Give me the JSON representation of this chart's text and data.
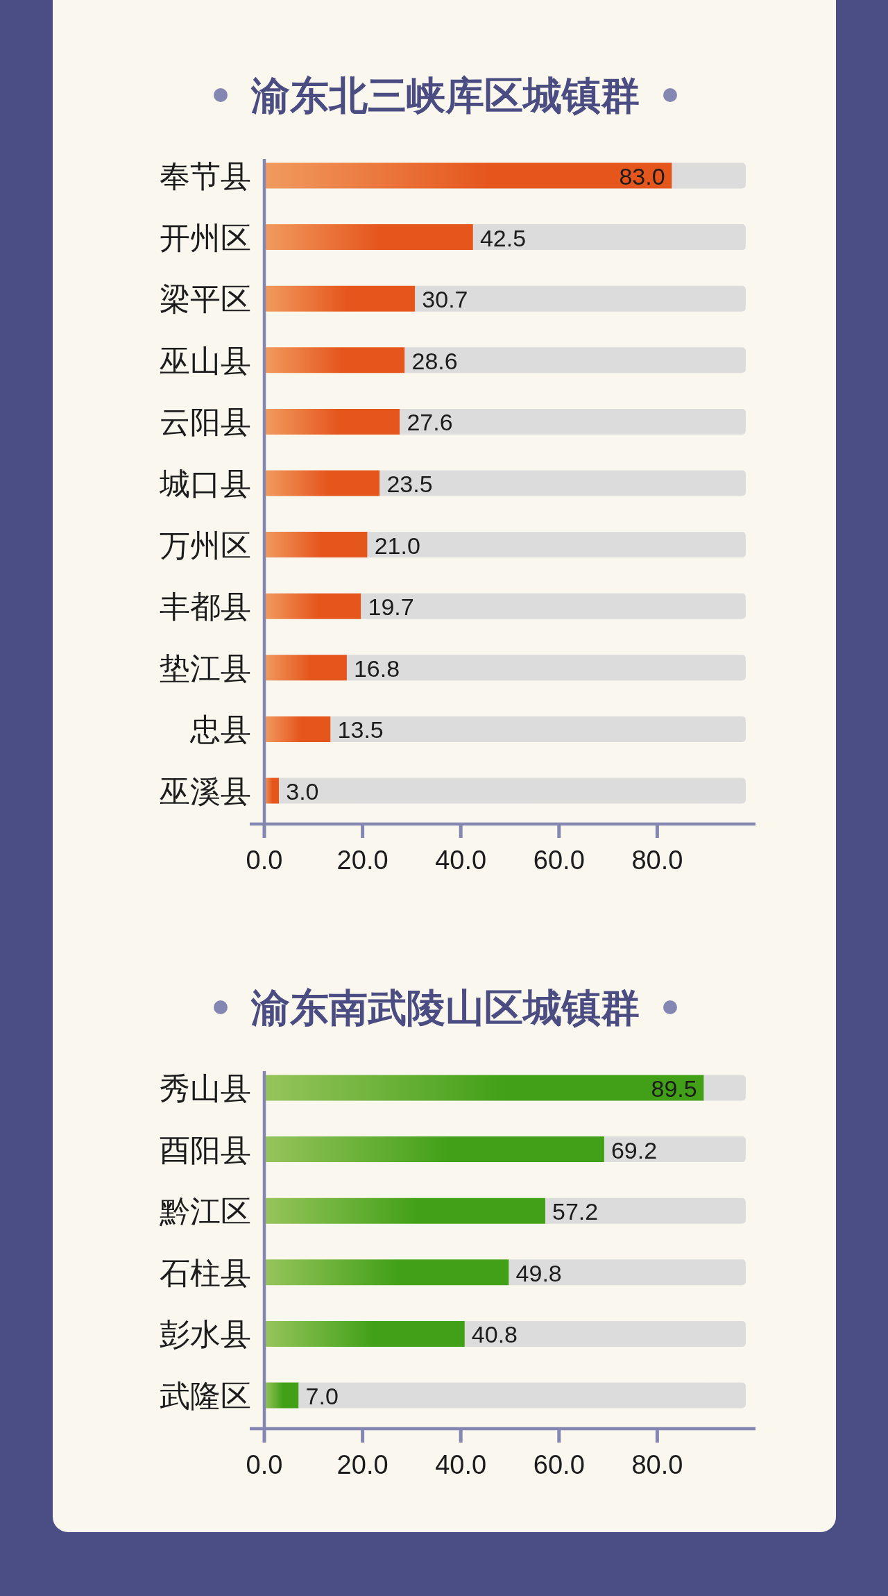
{
  "chart_data": [
    {
      "type": "bar",
      "orientation": "horizontal",
      "stacked": true,
      "title": "渝东北三峡库区城镇群",
      "categories": [
        "奉节县",
        "开州区",
        "梁平区",
        "巫山县",
        "云阳县",
        "城口县",
        "万州区",
        "丰都县",
        "垫江县",
        "忠县",
        "巫溪县"
      ],
      "series": [
        {
          "color": "#e5561d",
          "values": [
            83.0,
            42.5,
            30.7,
            28.6,
            27.6,
            23.5,
            21.0,
            19.7,
            16.8,
            13.5,
            3.0
          ],
          "value_labels": [
            "83.0",
            "42.5",
            "30.7",
            "28.6",
            "27.6",
            "23.5",
            "21.0",
            "19.7",
            "16.8",
            "13.5",
            "3.0"
          ]
        },
        {
          "color": "#dcdcdc",
          "values": [
            15.0,
            55.5,
            67.3,
            69.4,
            70.4,
            74.5,
            77.0,
            78.3,
            81.2,
            84.5,
            95.0
          ]
        }
      ],
      "xlim": [
        0,
        100
      ],
      "xticks": [
        {
          "value": 0,
          "label": "0.0"
        },
        {
          "value": 20,
          "label": "20.0"
        },
        {
          "value": 40,
          "label": "40.0"
        },
        {
          "value": 60,
          "label": "60.0"
        },
        {
          "value": 80,
          "label": "80.0"
        }
      ]
    },
    {
      "type": "bar",
      "orientation": "horizontal",
      "stacked": true,
      "title": "渝东南武陵山区城镇群",
      "categories": [
        "秀山县",
        "酉阳县",
        "黔江区",
        "石柱县",
        "彭水县",
        "武隆区"
      ],
      "series": [
        {
          "color": "#41a017",
          "values": [
            89.5,
            69.2,
            57.2,
            49.8,
            40.8,
            7.0
          ],
          "value_labels": [
            "89.5",
            "69.2",
            "57.2",
            "49.8",
            "40.8",
            "7.0"
          ]
        },
        {
          "color": "#dcdcdc",
          "values": [
            8.5,
            28.8,
            40.8,
            48.2,
            57.2,
            91.0
          ]
        }
      ],
      "xlim": [
        0,
        100
      ],
      "xticks": [
        {
          "value": 0,
          "label": "0.0"
        },
        {
          "value": 20,
          "label": "20.0"
        },
        {
          "value": 40,
          "label": "40.0"
        },
        {
          "value": 60,
          "label": "60.0"
        },
        {
          "value": 80,
          "label": "80.0"
        }
      ]
    }
  ]
}
